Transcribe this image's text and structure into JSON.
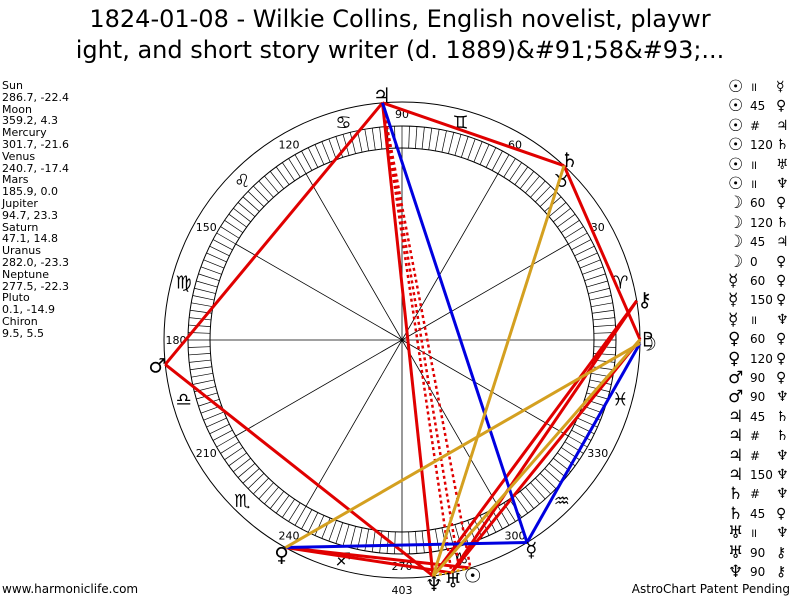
{
  "title_line1": "1824-01-08 - Wilkie Collins, English novelist, playwr",
  "title_line2": "ight, and short story writer (d. 1889)&#91;58&#93;...",
  "planets": [
    {
      "name": "Sun",
      "coords": "286.7, -22.4",
      "glyph": "☉",
      "lon": 286.7,
      "color": "#000000"
    },
    {
      "name": "Moon",
      "coords": "359.2, 4.3",
      "glyph": "☽",
      "lon": 359.2,
      "color": "#000000"
    },
    {
      "name": "Mercury",
      "coords": "301.7, -21.6",
      "glyph": "☿",
      "lon": 301.7,
      "color": "#000000"
    },
    {
      "name": "Venus",
      "coords": "240.7, -17.4",
      "glyph": "♀",
      "lon": 240.7,
      "color": "#000000"
    },
    {
      "name": "Mars",
      "coords": "185.9, 0.0",
      "glyph": "♂",
      "lon": 185.9,
      "color": "#000000"
    },
    {
      "name": "Jupiter",
      "coords": "94.7, 23.3",
      "glyph": "♃",
      "lon": 94.7,
      "color": "#000000"
    },
    {
      "name": "Saturn",
      "coords": "47.1, 14.8",
      "glyph": "♄",
      "lon": 47.1,
      "color": "#000000"
    },
    {
      "name": "Uranus",
      "coords": "282.0, -23.3",
      "glyph": "♅",
      "lon": 282.0,
      "color": "#000000"
    },
    {
      "name": "Neptune",
      "coords": "277.5, -22.3",
      "glyph": "♆",
      "lon": 277.5,
      "color": "#000000"
    },
    {
      "name": "Pluto",
      "coords": "0.1, -14.9",
      "glyph": "♇",
      "lon": 0.1,
      "color": "#000000"
    },
    {
      "name": "Chiron",
      "coords": "9.5, 5.5",
      "glyph": "⚷",
      "lon": 9.5,
      "color": "#000000"
    }
  ],
  "zodiac_signs": [
    "♈",
    "♉",
    "♊",
    "♋",
    "♌",
    "♍",
    "♎",
    "♏",
    "♐",
    "♑",
    "♒",
    "♓"
  ],
  "degree_labels": [
    {
      "deg": 90,
      "text": "90"
    },
    {
      "deg": 60,
      "text": "60"
    },
    {
      "deg": 30,
      "text": "30"
    },
    {
      "deg": 120,
      "text": "120"
    },
    {
      "deg": 150,
      "text": "150"
    },
    {
      "deg": 180,
      "text": "180"
    },
    {
      "deg": 210,
      "text": "210"
    },
    {
      "deg": 240,
      "text": "240"
    },
    {
      "deg": 270,
      "text": "270"
    },
    {
      "deg": 300,
      "text": "300"
    },
    {
      "deg": 330,
      "text": "330"
    }
  ],
  "bottom_label": "403",
  "aspects": [
    {
      "p1": "☉",
      "aspect": "॥",
      "p2": "☿"
    },
    {
      "p1": "☉",
      "aspect": "45",
      "p2": "♀"
    },
    {
      "p1": "☉",
      "aspect": "#",
      "p2": "♃"
    },
    {
      "p1": "☉",
      "aspect": "120",
      "p2": "♄"
    },
    {
      "p1": "☉",
      "aspect": "॥",
      "p2": "♅"
    },
    {
      "p1": "☉",
      "aspect": "॥",
      "p2": "♆"
    },
    {
      "p1": "☽",
      "aspect": "60",
      "p2": "♀"
    },
    {
      "p1": "☽",
      "aspect": "120",
      "p2": "♄"
    },
    {
      "p1": "☽",
      "aspect": "45",
      "p2": "♃"
    },
    {
      "p1": "☽",
      "aspect": "0",
      "p2": "♀"
    },
    {
      "p1": "☿",
      "aspect": "60",
      "p2": "♀"
    },
    {
      "p1": "☿",
      "aspect": "150",
      "p2": "♀"
    },
    {
      "p1": "☿",
      "aspect": "॥",
      "p2": "♆"
    },
    {
      "p1": "♀",
      "aspect": "60",
      "p2": "♀"
    },
    {
      "p1": "♀",
      "aspect": "120",
      "p2": "♀"
    },
    {
      "p1": "♂",
      "aspect": "90",
      "p2": "♀"
    },
    {
      "p1": "♂",
      "aspect": "90",
      "p2": "♆"
    },
    {
      "p1": "♃",
      "aspect": "45",
      "p2": "♄"
    },
    {
      "p1": "♃",
      "aspect": "#",
      "p2": "♄"
    },
    {
      "p1": "♃",
      "aspect": "#",
      "p2": "♆"
    },
    {
      "p1": "♃",
      "aspect": "150",
      "p2": "♆"
    },
    {
      "p1": "♄",
      "aspect": "#",
      "p2": "♆"
    },
    {
      "p1": "♄",
      "aspect": "45",
      "p2": "♀"
    },
    {
      "p1": "♅",
      "aspect": "॥",
      "p2": "♆"
    },
    {
      "p1": "♅",
      "aspect": "90",
      "p2": "⚷"
    },
    {
      "p1": "♆",
      "aspect": "90",
      "p2": "⚷"
    }
  ],
  "aspect_lines": [
    {
      "from": 94.7,
      "to": 185.9,
      "color": "#e00000",
      "style": "solid"
    },
    {
      "from": 185.9,
      "to": 277.5,
      "color": "#e00000",
      "style": "solid"
    },
    {
      "from": 94.7,
      "to": 47.1,
      "color": "#e00000",
      "style": "solid"
    },
    {
      "from": 47.1,
      "to": 0.1,
      "color": "#e00000",
      "style": "solid"
    },
    {
      "from": 0.1,
      "to": 282.0,
      "color": "#e00000",
      "style": "solid"
    },
    {
      "from": 9.5,
      "to": 282.0,
      "color": "#e00000",
      "style": "solid"
    },
    {
      "from": 9.5,
      "to": 277.5,
      "color": "#e00000",
      "style": "solid"
    },
    {
      "from": 94.7,
      "to": 277.5,
      "color": "#e00000",
      "style": "solid"
    },
    {
      "from": 240.7,
      "to": 286.7,
      "color": "#e00000",
      "style": "solid"
    },
    {
      "from": 240.7,
      "to": 282.0,
      "color": "#e00000",
      "style": "solid"
    },
    {
      "from": 94.7,
      "to": 282.0,
      "color": "#e00000",
      "style": "dotted"
    },
    {
      "from": 94.7,
      "to": 286.7,
      "color": "#e00000",
      "style": "dotted"
    },
    {
      "from": 94.7,
      "to": 284.0,
      "color": "#e00000",
      "style": "dotted"
    },
    {
      "from": 277.5,
      "to": 286.7,
      "color": "#e0a000",
      "style": "dotted"
    },
    {
      "from": 94.7,
      "to": 301.7,
      "color": "#0000e0",
      "style": "solid"
    },
    {
      "from": 301.7,
      "to": 359.2,
      "color": "#0000e0",
      "style": "solid"
    },
    {
      "from": 240.7,
      "to": 301.7,
      "color": "#0000e0",
      "style": "solid"
    },
    {
      "from": 47.1,
      "to": 277.5,
      "color": "#d4a020",
      "style": "solid"
    },
    {
      "from": 359.2,
      "to": 240.7,
      "color": "#d4a020",
      "style": "solid"
    },
    {
      "from": 0.1,
      "to": 277.5,
      "color": "#d4a020",
      "style": "solid"
    }
  ],
  "footer_left": "www.harmoniclife.com",
  "footer_right": "AstroChart Patent Pending"
}
